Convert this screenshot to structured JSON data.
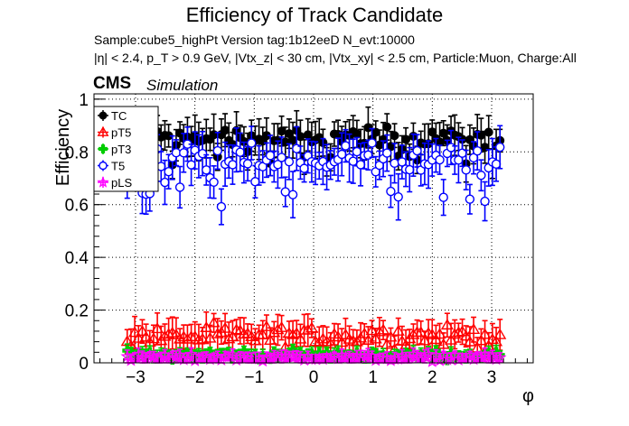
{
  "chart_data": {
    "type": "scatter",
    "title": "Efficiency of Track Candidate",
    "subtitle_line1": "Sample:cube5_highPt   Version tag:1b12eeD  N_evt:10000",
    "subtitle_line2": "|η| < 2.4, p_T > 0.9 GeV, |Vtx_z| < 30 cm, |Vtx_xy| < 2.5 cm, Particle:Muon, Charge:All",
    "experiment_label": "CMS",
    "experiment_sublabel": "Simulation",
    "xlabel": "φ",
    "ylabel": "Efficiency",
    "xlim": [
      -3.7,
      3.7
    ],
    "ylim": [
      0,
      1.02
    ],
    "xticks": [
      -3,
      -2,
      -1,
      0,
      1,
      2,
      3
    ],
    "xtick_labels": [
      "−3",
      "−2",
      "−1",
      "0",
      "1",
      "2",
      "3"
    ],
    "yticks": [
      0,
      0.2,
      0.4,
      0.6,
      0.8,
      1
    ],
    "ytick_labels": [
      "0",
      "0.2",
      "0.4",
      "0.6",
      "0.8",
      "1"
    ],
    "grid": true,
    "legend_position": "top-left",
    "series": [
      {
        "name": "TC",
        "marker": "filled-circle",
        "color": "#000000",
        "x_range": [
          -3.14,
          3.14
        ],
        "n_points": 100,
        "mean": 0.85,
        "spread": 0.04,
        "err": 0.06
      },
      {
        "name": "pT5",
        "marker": "open-triangle",
        "color": "#ff0000",
        "x_range": [
          -3.14,
          3.14
        ],
        "n_points": 100,
        "mean": 0.1,
        "spread": 0.035,
        "err": 0.05
      },
      {
        "name": "pT3",
        "marker": "filled-cross",
        "color": "#00cc00",
        "x_range": [
          -3.14,
          3.14
        ],
        "n_points": 100,
        "mean": 0.03,
        "spread": 0.015,
        "err": 0.02
      },
      {
        "name": "T5",
        "marker": "open-circle",
        "color": "#0000ff",
        "x_range": [
          -3.14,
          3.14
        ],
        "n_points": 100,
        "mean": 0.77,
        "spread": 0.06,
        "err": 0.07
      },
      {
        "name": "pLS",
        "marker": "open-star",
        "color": "#ff00ff",
        "x_range": [
          -3.14,
          3.14
        ],
        "n_points": 100,
        "mean": 0.02,
        "spread": 0.012,
        "err": 0.02
      }
    ]
  }
}
